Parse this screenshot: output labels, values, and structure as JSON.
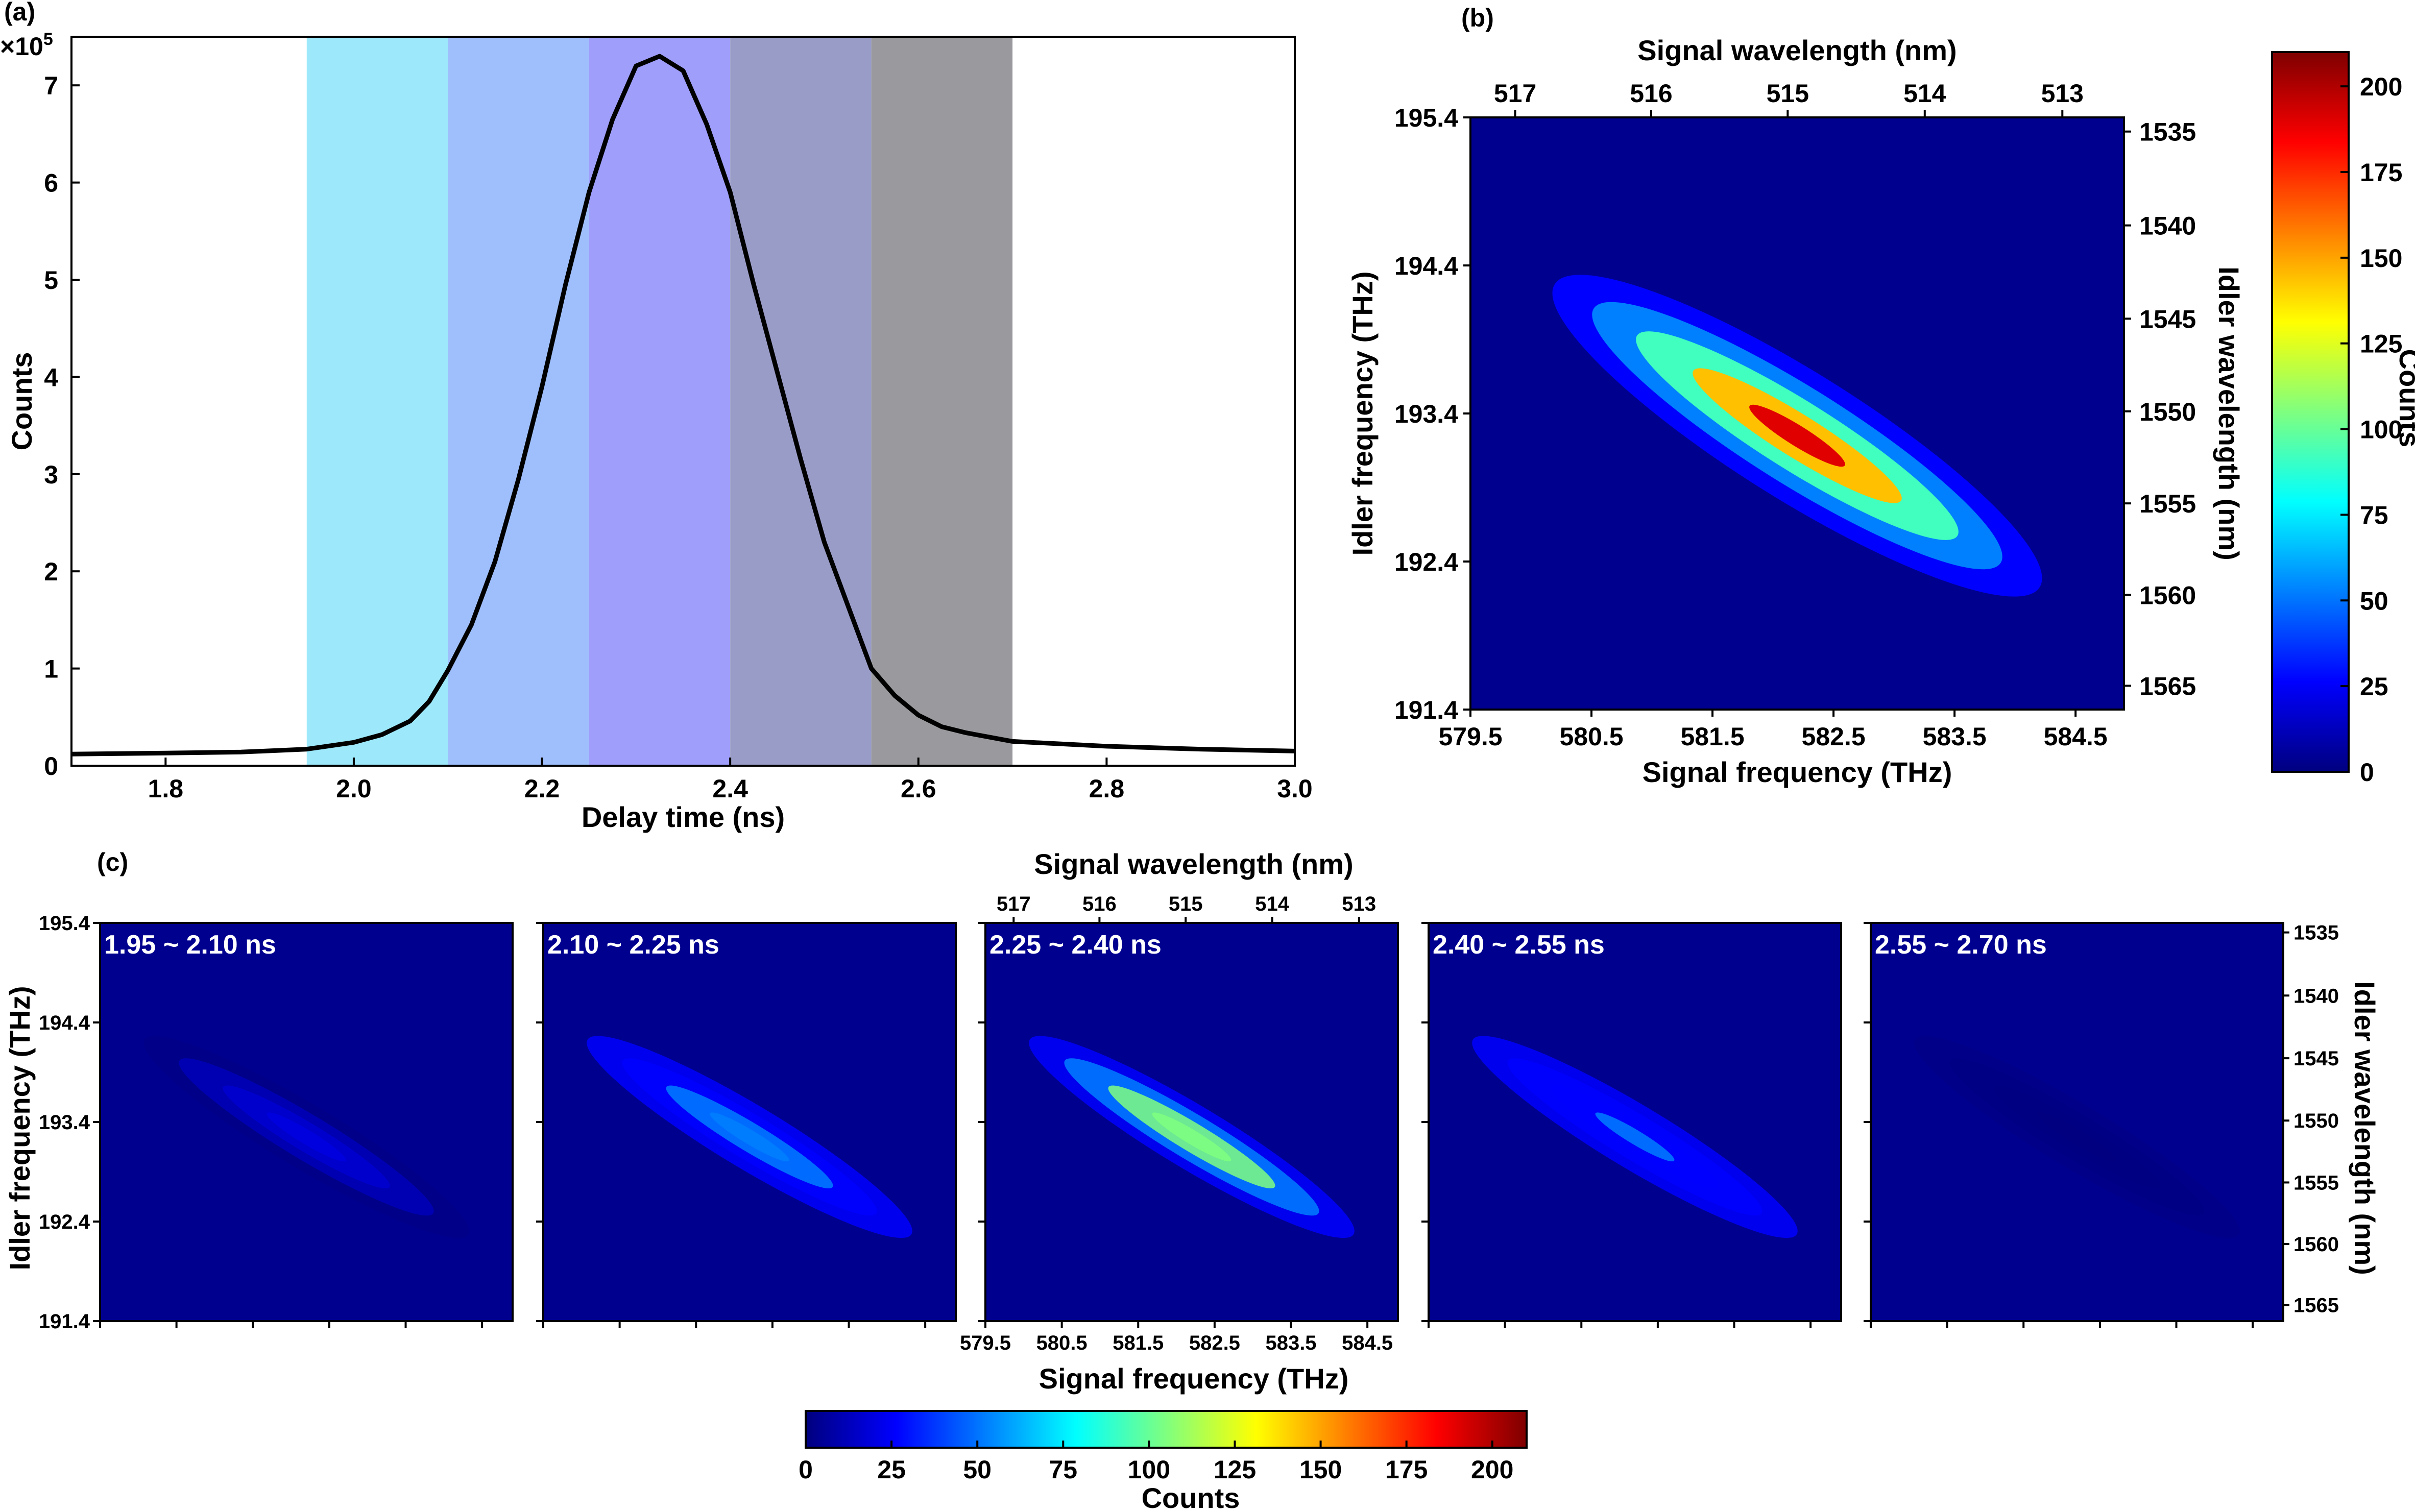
{
  "colors": {
    "line": "#000000",
    "heat_background": "#00008f",
    "colormap": [
      "#00007f",
      "#0000ff",
      "#007fff",
      "#00ffff",
      "#7fff7f",
      "#ffff00",
      "#ff7f00",
      "#ff0000",
      "#7f0000"
    ],
    "bands": [
      "#9de9fb",
      "#9fbffc",
      "#9f9efb",
      "#9a9cc8",
      "#9a9a9e"
    ]
  },
  "chart_data": [
    {
      "panel": "(a)",
      "type": "line",
      "xlabel": "Delay time (ns)",
      "ylabel": "Counts",
      "multiplier": "×10",
      "multiplier_exp": "5",
      "xlim": [
        1.7,
        3.0
      ],
      "ylim": [
        0,
        7.5
      ],
      "xticks": [
        1.8,
        2.0,
        2.2,
        2.4,
        2.6,
        2.8,
        3.0
      ],
      "xtick_labels": [
        "1.8",
        "2.0",
        "2.2",
        "2.4",
        "2.6",
        "2.8",
        "3.0"
      ],
      "yticks": [
        0,
        1,
        2,
        3,
        4,
        5,
        6,
        7
      ],
      "ytick_labels": [
        "0",
        "1",
        "2",
        "3",
        "4",
        "5",
        "6",
        "7"
      ],
      "grid": false,
      "bands": [
        [
          1.95,
          2.1
        ],
        [
          2.1,
          2.25
        ],
        [
          2.25,
          2.4
        ],
        [
          2.4,
          2.55
        ],
        [
          2.55,
          2.7
        ]
      ],
      "x": [
        1.7,
        1.8,
        1.88,
        1.95,
        2.0,
        2.03,
        2.06,
        2.08,
        2.1,
        2.125,
        2.15,
        2.175,
        2.2,
        2.225,
        2.25,
        2.275,
        2.3,
        2.325,
        2.35,
        2.375,
        2.4,
        2.425,
        2.45,
        2.475,
        2.5,
        2.525,
        2.55,
        2.575,
        2.6,
        2.625,
        2.65,
        2.7,
        2.8,
        2.9,
        3.0
      ],
      "y": [
        0.12,
        0.13,
        0.14,
        0.17,
        0.24,
        0.32,
        0.46,
        0.66,
        0.98,
        1.45,
        2.1,
        2.95,
        3.9,
        4.95,
        5.9,
        6.65,
        7.2,
        7.3,
        7.15,
        6.6,
        5.9,
        4.95,
        4.05,
        3.15,
        2.3,
        1.65,
        1.0,
        0.72,
        0.52,
        0.4,
        0.34,
        0.25,
        0.2,
        0.17,
        0.15
      ]
    },
    {
      "panel": "(b)",
      "type": "heatmap",
      "xlabel": "Signal frequency (THz)",
      "ylabel": "Idler frequency (THz)",
      "x2label": "Signal wavelength (nm)",
      "y2label": "Idler wavelength (nm)",
      "colorbar_label": "Counts",
      "xlim": [
        579.5,
        584.9
      ],
      "ylim": [
        191.4,
        195.4
      ],
      "xticks": [
        579.5,
        580.5,
        581.5,
        582.5,
        583.5,
        584.5
      ],
      "xtick_labels": [
        "579.5",
        "580.5",
        "581.5",
        "582.5",
        "583.5",
        "584.5"
      ],
      "yticks": [
        191.4,
        192.4,
        193.4,
        194.4,
        195.4
      ],
      "ytick_labels": [
        "191.4",
        "192.4",
        "193.4",
        "194.4",
        "195.4"
      ],
      "x2ticks": [
        517,
        516,
        515,
        514,
        513
      ],
      "x2tick_labels": [
        "517",
        "516",
        "515",
        "514",
        "513"
      ],
      "y2ticks": [
        1535,
        1540,
        1545,
        1550,
        1555,
        1560,
        1565
      ],
      "y2tick_labels": [
        "1535",
        "1540",
        "1545",
        "1550",
        "1555",
        "1560",
        "1565"
      ],
      "colorbar_range": [
        0,
        210
      ],
      "colorbar_ticks": [
        0,
        25,
        50,
        75,
        100,
        125,
        150,
        175,
        200
      ],
      "colorbar_tick_labels": [
        "0",
        "25",
        "50",
        "75",
        "100",
        "125",
        "150",
        "175",
        "200"
      ],
      "peak": {
        "x": 582.2,
        "y": 193.25,
        "value": 210
      }
    },
    {
      "panel": "(c)",
      "type": "heatmap",
      "xlabel": "Signal frequency (THz)",
      "ylabel": "Idler frequency (THz)",
      "x2label": "Signal wavelength (nm)",
      "y2label": "Idler wavelength (nm)",
      "colorbar_label": "Counts",
      "colorbar_range": [
        0,
        210
      ],
      "colorbar_ticks": [
        0,
        25,
        50,
        75,
        100,
        125,
        150,
        175,
        200
      ],
      "colorbar_tick_labels": [
        "0",
        "25",
        "50",
        "75",
        "100",
        "125",
        "150",
        "175",
        "200"
      ],
      "xticks": [
        579.5,
        580.5,
        581.5,
        582.5,
        583.5,
        584.5
      ],
      "xtick_labels": [
        "579.5",
        "580.5",
        "581.5",
        "582.5",
        "583.5",
        "584.5"
      ],
      "yticks": [
        191.4,
        192.4,
        193.4,
        194.4,
        195.4
      ],
      "ytick_labels": [
        "191.4",
        "192.4",
        "193.4",
        "194.4",
        "195.4"
      ],
      "x2tick_labels": [
        "517",
        "516",
        "515",
        "514",
        "513"
      ],
      "y2tick_labels": [
        "1535",
        "1540",
        "1545",
        "1550",
        "1555",
        "1560",
        "1565"
      ],
      "subpanels": [
        {
          "label": "1.95 ~ 2.10 ns",
          "peak_counts": 12
        },
        {
          "label": "2.10 ~ 2.25 ns",
          "peak_counts": 48
        },
        {
          "label": "2.25 ~ 2.40 ns",
          "peak_counts": 105
        },
        {
          "label": "2.40 ~ 2.55 ns",
          "peak_counts": 38
        },
        {
          "label": "2.55 ~ 2.70 ns",
          "peak_counts": 5
        }
      ]
    }
  ]
}
